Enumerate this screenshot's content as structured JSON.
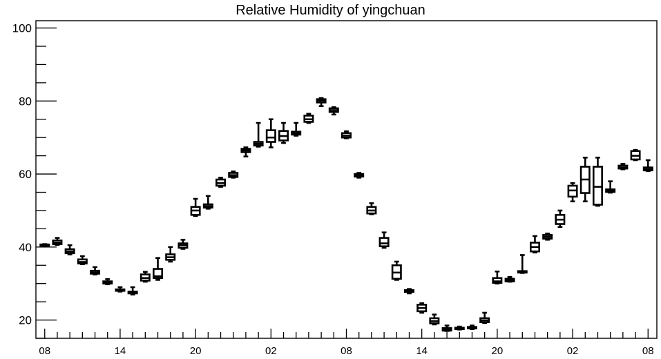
{
  "chart_data": {
    "type": "box",
    "title": "Relative Humidity of yingchuan",
    "xlabel": "",
    "ylabel": "",
    "ylim": [
      15,
      102
    ],
    "xlim": [
      -0.7,
      48.7
    ],
    "y_major_ticks": [
      20,
      40,
      60,
      80,
      100
    ],
    "y_minor_step": 5,
    "x_tick_labels": [
      {
        "x": 0,
        "label": "08"
      },
      {
        "x": 6,
        "label": "14"
      },
      {
        "x": 12,
        "label": "20"
      },
      {
        "x": 18,
        "label": "02"
      },
      {
        "x": 24,
        "label": "08"
      },
      {
        "x": 30,
        "label": "14"
      },
      {
        "x": 36,
        "label": "20"
      },
      {
        "x": 42,
        "label": "02"
      },
      {
        "x": 48,
        "label": "08"
      }
    ],
    "box_color": "#000000",
    "boxes": [
      {
        "x": 0,
        "whislo": 40.3,
        "q1": 40.4,
        "med": 40.5,
        "q3": 40.7,
        "whishi": 40.8
      },
      {
        "x": 1,
        "whislo": 40.6,
        "q1": 40.8,
        "med": 41.2,
        "q3": 41.8,
        "whishi": 42.5
      },
      {
        "x": 2,
        "whislo": 38.0,
        "q1": 38.3,
        "med": 38.8,
        "q3": 39.4,
        "whishi": 40.5
      },
      {
        "x": 3,
        "whislo": 35.3,
        "q1": 35.5,
        "med": 35.9,
        "q3": 36.6,
        "whishi": 37.5
      },
      {
        "x": 4,
        "whislo": 32.5,
        "q1": 32.7,
        "med": 33.0,
        "q3": 33.5,
        "whishi": 34.5
      },
      {
        "x": 5,
        "whislo": 29.8,
        "q1": 30.0,
        "med": 30.3,
        "q3": 30.6,
        "whishi": 31.2
      },
      {
        "x": 6,
        "whislo": 27.8,
        "q1": 28.0,
        "med": 28.2,
        "q3": 28.4,
        "whishi": 29.0
      },
      {
        "x": 7,
        "whislo": 27.0,
        "q1": 27.3,
        "med": 27.5,
        "q3": 27.8,
        "whishi": 29.0
      },
      {
        "x": 8,
        "whislo": 30.5,
        "q1": 30.8,
        "med": 31.5,
        "q3": 32.5,
        "whishi": 33.2
      },
      {
        "x": 9,
        "whislo": 31.0,
        "q1": 31.5,
        "med": 32.0,
        "q3": 34.0,
        "whishi": 37.0
      },
      {
        "x": 10,
        "whislo": 36.0,
        "q1": 36.5,
        "med": 37.2,
        "q3": 38.0,
        "whishi": 40.0
      },
      {
        "x": 11,
        "whislo": 39.5,
        "q1": 39.8,
        "med": 40.5,
        "q3": 41.0,
        "whishi": 42.0
      },
      {
        "x": 12,
        "whislo": 48.5,
        "q1": 48.8,
        "med": 50.0,
        "q3": 51.0,
        "whishi": 53.2
      },
      {
        "x": 13,
        "whislo": 50.5,
        "q1": 50.8,
        "med": 51.2,
        "q3": 51.7,
        "whishi": 54.0
      },
      {
        "x": 14,
        "whislo": 56.5,
        "q1": 56.8,
        "med": 57.5,
        "q3": 58.5,
        "whishi": 59.0
      },
      {
        "x": 15,
        "whislo": 59.0,
        "q1": 59.2,
        "med": 59.7,
        "q3": 60.3,
        "whishi": 60.7
      },
      {
        "x": 16,
        "whislo": 64.8,
        "q1": 66.0,
        "med": 66.5,
        "q3": 66.9,
        "whishi": 67.3
      },
      {
        "x": 17,
        "whislo": 67.5,
        "q1": 67.8,
        "med": 68.3,
        "q3": 68.8,
        "whishi": 74.0
      },
      {
        "x": 18,
        "whislo": 67.3,
        "q1": 68.8,
        "med": 70.0,
        "q3": 72.0,
        "whishi": 75.0
      },
      {
        "x": 19,
        "whislo": 68.5,
        "q1": 69.2,
        "med": 70.4,
        "q3": 71.8,
        "whishi": 74.0
      },
      {
        "x": 20,
        "whislo": 70.5,
        "q1": 70.8,
        "med": 71.2,
        "q3": 71.6,
        "whishi": 74.0
      },
      {
        "x": 21,
        "whislo": 74.0,
        "q1": 74.3,
        "med": 75.0,
        "q3": 76.0,
        "whishi": 76.5
      },
      {
        "x": 22,
        "whislo": 78.6,
        "q1": 79.6,
        "med": 80.1,
        "q3": 80.5,
        "whishi": 80.8
      },
      {
        "x": 23,
        "whislo": 76.3,
        "q1": 77.0,
        "med": 77.5,
        "q3": 78.0,
        "whishi": 78.3
      },
      {
        "x": 24,
        "whislo": 69.8,
        "q1": 70.0,
        "med": 70.5,
        "q3": 71.2,
        "whishi": 71.7
      },
      {
        "x": 25,
        "whislo": 59.0,
        "q1": 59.3,
        "med": 59.6,
        "q3": 60.0,
        "whishi": 60.3
      },
      {
        "x": 26,
        "whislo": 49.0,
        "q1": 49.2,
        "med": 50.0,
        "q3": 51.0,
        "whishi": 52.0
      },
      {
        "x": 27,
        "whislo": 39.8,
        "q1": 40.2,
        "med": 41.0,
        "q3": 42.5,
        "whishi": 44.0
      },
      {
        "x": 28,
        "whislo": 31.0,
        "q1": 31.3,
        "med": 33.0,
        "q3": 35.0,
        "whishi": 36.0
      },
      {
        "x": 29,
        "whislo": 27.3,
        "q1": 27.7,
        "med": 27.9,
        "q3": 28.2,
        "whishi": 28.5
      },
      {
        "x": 30,
        "whislo": 22.0,
        "q1": 22.4,
        "med": 23.3,
        "q3": 24.2,
        "whishi": 24.6
      },
      {
        "x": 31,
        "whislo": 18.8,
        "q1": 19.1,
        "med": 19.7,
        "q3": 20.5,
        "whishi": 21.5
      },
      {
        "x": 32,
        "whislo": 17.0,
        "q1": 17.1,
        "med": 17.4,
        "q3": 17.8,
        "whishi": 18.5
      },
      {
        "x": 33,
        "whislo": 17.4,
        "q1": 17.5,
        "med": 17.7,
        "q3": 17.9,
        "whishi": 18.2
      },
      {
        "x": 34,
        "whislo": 17.5,
        "q1": 17.7,
        "med": 17.9,
        "q3": 18.1,
        "whishi": 18.5
      },
      {
        "x": 35,
        "whislo": 19.2,
        "q1": 19.4,
        "med": 19.9,
        "q3": 20.5,
        "whishi": 22.0
      },
      {
        "x": 36,
        "whislo": 30.0,
        "q1": 30.2,
        "med": 30.6,
        "q3": 31.5,
        "whishi": 33.3
      },
      {
        "x": 37,
        "whislo": 30.5,
        "q1": 30.6,
        "med": 30.9,
        "q3": 31.3,
        "whishi": 31.8
      },
      {
        "x": 38,
        "whislo": 32.9,
        "q1": 33.0,
        "med": 33.2,
        "q3": 33.4,
        "whishi": 37.8
      },
      {
        "x": 39,
        "whislo": 38.5,
        "q1": 38.8,
        "med": 40.0,
        "q3": 41.2,
        "whishi": 43.0
      },
      {
        "x": 40,
        "whislo": 42.0,
        "q1": 42.3,
        "med": 42.8,
        "q3": 43.3,
        "whishi": 43.7
      },
      {
        "x": 41,
        "whislo": 45.5,
        "q1": 46.3,
        "med": 47.5,
        "q3": 48.8,
        "whishi": 50.0
      },
      {
        "x": 42,
        "whislo": 52.5,
        "q1": 53.8,
        "med": 55.5,
        "q3": 56.8,
        "whishi": 57.5
      },
      {
        "x": 43,
        "whislo": 52.5,
        "q1": 54.8,
        "med": 58.5,
        "q3": 62.0,
        "whishi": 64.5
      },
      {
        "x": 44,
        "whislo": 51.3,
        "q1": 51.6,
        "med": 56.5,
        "q3": 62.0,
        "whishi": 64.5
      },
      {
        "x": 45,
        "whislo": 54.9,
        "q1": 55.1,
        "med": 55.4,
        "q3": 55.8,
        "whishi": 58.0
      },
      {
        "x": 46,
        "whislo": 61.3,
        "q1": 61.5,
        "med": 61.8,
        "q3": 62.3,
        "whishi": 62.8
      },
      {
        "x": 47,
        "whislo": 63.8,
        "q1": 64.0,
        "med": 65.0,
        "q3": 66.3,
        "whishi": 66.6
      },
      {
        "x": 48,
        "whislo": 60.8,
        "q1": 61.0,
        "med": 61.3,
        "q3": 61.8,
        "whishi": 63.8
      }
    ]
  }
}
